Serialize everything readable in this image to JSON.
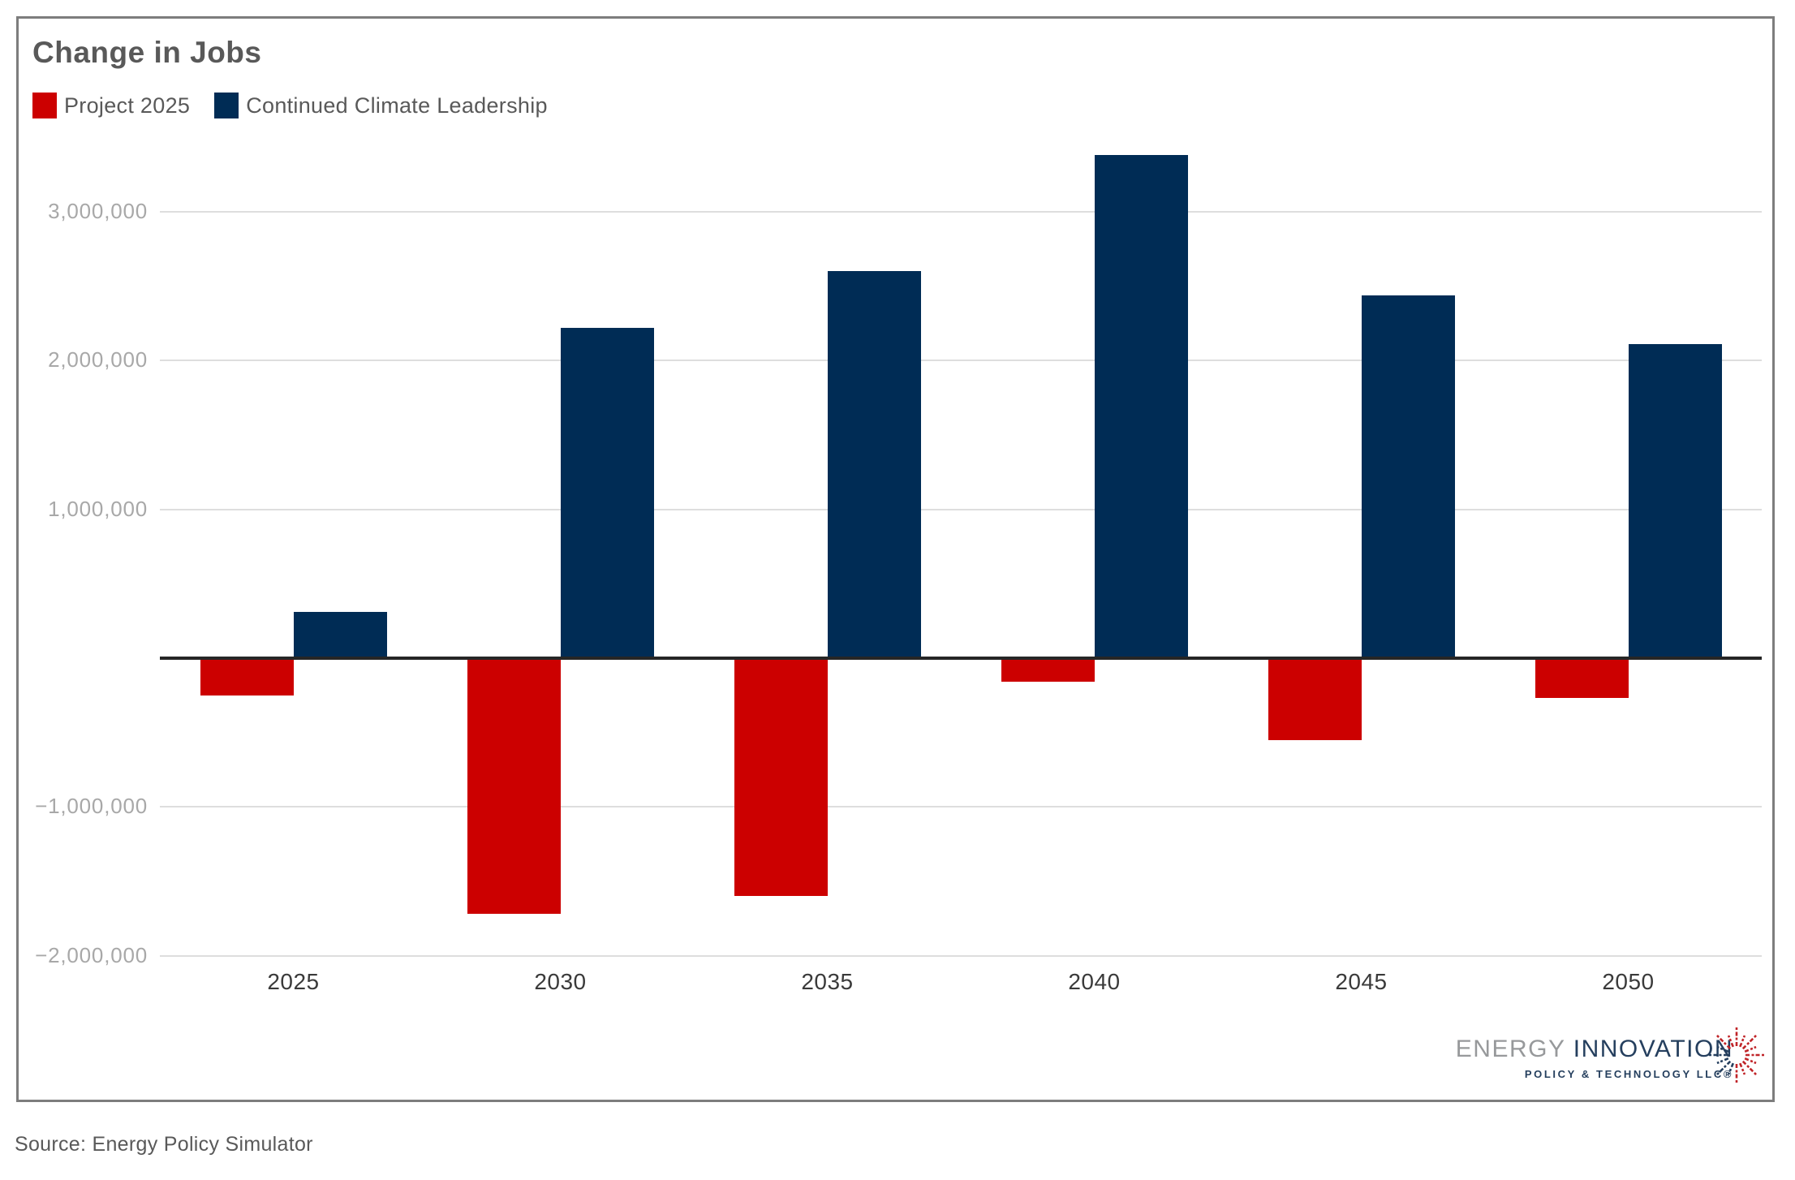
{
  "card": {
    "title": "Change in Jobs"
  },
  "legend": {
    "items": [
      {
        "label": "Project 2025",
        "color": "#cc0000"
      },
      {
        "label": "Continued Climate Leadership",
        "color": "#002c55"
      }
    ]
  },
  "chart_data": {
    "type": "bar",
    "title": "Change in Jobs",
    "categories": [
      "2025",
      "2030",
      "2035",
      "2040",
      "2045",
      "2050"
    ],
    "series": [
      {
        "name": "Project 2025",
        "color": "#cc0000",
        "values": [
          -250000,
          -1720000,
          -1600000,
          -160000,
          -550000,
          -270000
        ]
      },
      {
        "name": "Continued Climate Leadership",
        "color": "#002c55",
        "values": [
          310000,
          2220000,
          2600000,
          3380000,
          2440000,
          2110000
        ]
      }
    ],
    "xlabel": "",
    "ylabel": "",
    "ylim": [
      -2010000,
      3580000
    ],
    "yticks": [
      {
        "value": 3000000,
        "label": "3,000,000"
      },
      {
        "value": 2000000,
        "label": "2,000,000"
      },
      {
        "value": 1000000,
        "label": "1,000,000"
      },
      {
        "value": -1000000,
        "label": "−1,000,000"
      },
      {
        "value": -2000000,
        "label": "−2,000,000"
      }
    ],
    "grid": true,
    "zero_axis": true,
    "legend_position": "top-left"
  },
  "logo": {
    "part1": "ENERGY ",
    "part2": "INNOVATION",
    "subtitle": "POLICY & TECHNOLOGY LLC®"
  },
  "footer": {
    "source": "Source: Energy Policy Simulator"
  },
  "colors": {
    "red": "#cc0000",
    "navy": "#002c55",
    "grid": "#dedede",
    "zero_line": "#262626",
    "ytick_text": "#a8a8a8",
    "xtick_text": "#3a3a3a",
    "title_text": "#595959",
    "border": "#7d7d7d",
    "logo_gray": "#97999b",
    "logo_navy": "#253f5e",
    "starburst_red": "#c02428"
  }
}
